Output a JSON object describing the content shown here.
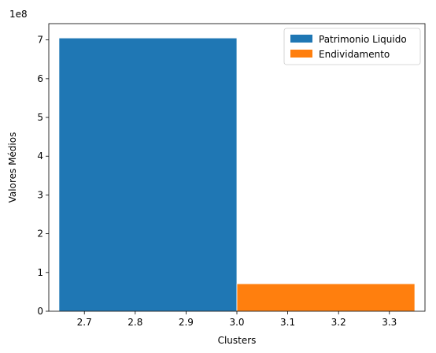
{
  "chart_data": {
    "type": "bar",
    "title": "",
    "xlabel": "Clusters",
    "ylabel": "Valores Médios",
    "y_offset_label": "1e8",
    "xlim": [
      2.63,
      3.37
    ],
    "ylim": [
      0,
      7.42
    ],
    "x_ticks": [
      2.7,
      2.8,
      2.9,
      3.0,
      3.1,
      3.2,
      3.3
    ],
    "x_tick_labels": [
      "2.7",
      "2.8",
      "2.9",
      "3.0",
      "3.1",
      "3.2",
      "3.3"
    ],
    "y_ticks": [
      0,
      1,
      2,
      3,
      4,
      5,
      6,
      7
    ],
    "y_tick_labels": [
      "0",
      "1",
      "2",
      "3",
      "4",
      "5",
      "6",
      "7"
    ],
    "grid": false,
    "legend_position": "top-right",
    "series": [
      {
        "name": "Patrimonio Liquido",
        "color": "#1f77b4",
        "x_start": 2.65,
        "x_end": 3.0,
        "value": 7.05
      },
      {
        "name": "Endividamento",
        "color": "#ff7f0e",
        "x_start": 3.0,
        "x_end": 3.35,
        "value": 0.71
      }
    ]
  }
}
